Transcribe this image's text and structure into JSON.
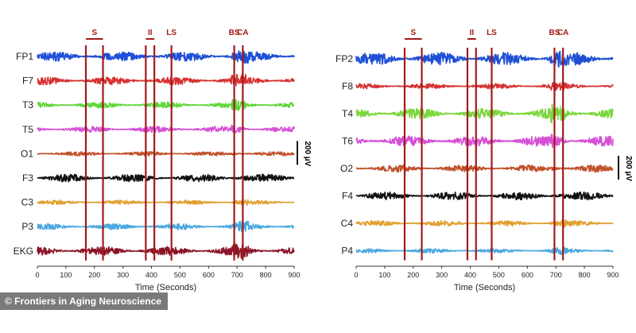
{
  "colors": {
    "marker": "#a31a1a",
    "axis": "#333333",
    "text": "#222222"
  },
  "credit": "© Frontiers in Aging Neuroscience",
  "chart_data": [
    {
      "type": "line",
      "panel": "left",
      "xlabel": "Time (Seconds)",
      "xlim": [
        0,
        900
      ],
      "xticks": [
        0,
        100,
        200,
        300,
        400,
        500,
        600,
        700,
        800,
        900
      ],
      "scale_bar": "200 µV",
      "events": [
        {
          "label": "S",
          "start": 170,
          "end": 230
        },
        {
          "label": "II",
          "start": 380,
          "end": 410
        },
        {
          "label": "LS",
          "start": 470,
          "end": 470
        },
        {
          "label": "BS",
          "start": 690,
          "end": 690
        },
        {
          "label": "CA",
          "start": 720,
          "end": 720
        }
      ],
      "series": [
        {
          "name": "FP1",
          "color": "#1e4fd6",
          "amplitude": 0.55
        },
        {
          "name": "F7",
          "color": "#d63232",
          "amplitude": 0.45
        },
        {
          "name": "T3",
          "color": "#5fd63a",
          "amplitude": 0.35
        },
        {
          "name": "T5",
          "color": "#d64fd6",
          "amplitude": 0.35
        },
        {
          "name": "O1",
          "color": "#c0502a",
          "amplitude": 0.25
        },
        {
          "name": "F3",
          "color": "#111111",
          "amplitude": 0.45
        },
        {
          "name": "C3",
          "color": "#e0a030",
          "amplitude": 0.25
        },
        {
          "name": "P3",
          "color": "#4aa8e0",
          "amplitude": 0.35
        },
        {
          "name": "EKG",
          "color": "#8a1428",
          "amplitude": 0.5
        }
      ]
    },
    {
      "type": "line",
      "panel": "right",
      "xlabel": "Time (Seconds)",
      "xlim": [
        0,
        900
      ],
      "xticks": [
        0,
        100,
        200,
        300,
        400,
        500,
        600,
        700,
        800,
        900
      ],
      "scale_bar": "200 µV",
      "events": [
        {
          "label": "S",
          "start": 170,
          "end": 230
        },
        {
          "label": "II",
          "start": 390,
          "end": 420
        },
        {
          "label": "LS",
          "start": 475,
          "end": 475
        },
        {
          "label": "BS",
          "start": 695,
          "end": 695
        },
        {
          "label": "CA",
          "start": 725,
          "end": 725
        }
      ],
      "series": [
        {
          "name": "FP2",
          "color": "#1e4fd6",
          "amplitude": 0.75
        },
        {
          "name": "F8",
          "color": "#d63232",
          "amplitude": 0.3
        },
        {
          "name": "T4",
          "color": "#7ad63a",
          "amplitude": 0.6
        },
        {
          "name": "T6",
          "color": "#d64fd6",
          "amplitude": 0.6
        },
        {
          "name": "O2",
          "color": "#c0502a",
          "amplitude": 0.4
        },
        {
          "name": "F4",
          "color": "#111111",
          "amplitude": 0.45
        },
        {
          "name": "C4",
          "color": "#e0a030",
          "amplitude": 0.3
        },
        {
          "name": "P4",
          "color": "#4aa8e0",
          "amplitude": 0.25
        }
      ]
    }
  ]
}
